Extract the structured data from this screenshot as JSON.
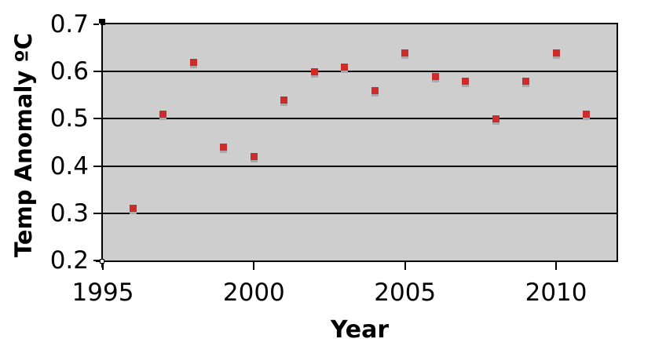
{
  "colors": {
    "page_background": "#ffffff",
    "plot_background": "#cecece",
    "gridline": "#000000",
    "axis_frame": "#000000",
    "marker": "#cf2b2b",
    "marker_shadow": "#a9a9a9",
    "text": "#000000"
  },
  "chart_data": {
    "type": "scatter",
    "title": "",
    "xlabel": "Year",
    "ylabel": "Temp Anomaly ºC",
    "xlim": [
      1995,
      2012
    ],
    "ylim": [
      0.2,
      0.7
    ],
    "grid": "horizontal",
    "legend_position": "none",
    "x_ticks": [
      1995,
      2000,
      2005,
      2010
    ],
    "x_tick_labels": [
      "1995",
      "2000",
      "2005",
      "2010"
    ],
    "y_ticks": [
      0.7,
      0.6,
      0.5,
      0.4,
      0.3,
      0.2
    ],
    "y_tick_labels": [
      "0.7",
      "0.6",
      "0.5",
      "0.4",
      "0.3",
      "0.2"
    ],
    "y_gridlines": [
      0.6,
      0.5,
      0.4,
      0.3
    ],
    "marker_style": "square-with-shadow",
    "series": [
      {
        "name": "Temp Anomaly",
        "color": "#cf2b2b",
        "points": [
          {
            "x": 1996,
            "y": 0.31
          },
          {
            "x": 1997,
            "y": 0.51
          },
          {
            "x": 1998,
            "y": 0.62
          },
          {
            "x": 1999,
            "y": 0.44
          },
          {
            "x": 2000,
            "y": 0.42
          },
          {
            "x": 2001,
            "y": 0.54
          },
          {
            "x": 2002,
            "y": 0.6
          },
          {
            "x": 2003,
            "y": 0.61
          },
          {
            "x": 2004,
            "y": 0.56
          },
          {
            "x": 2005,
            "y": 0.64
          },
          {
            "x": 2006,
            "y": 0.59
          },
          {
            "x": 2007,
            "y": 0.58
          },
          {
            "x": 2008,
            "y": 0.5
          },
          {
            "x": 2009,
            "y": 0.58
          },
          {
            "x": 2010,
            "y": 0.64
          },
          {
            "x": 2011,
            "y": 0.51
          }
        ]
      }
    ]
  }
}
